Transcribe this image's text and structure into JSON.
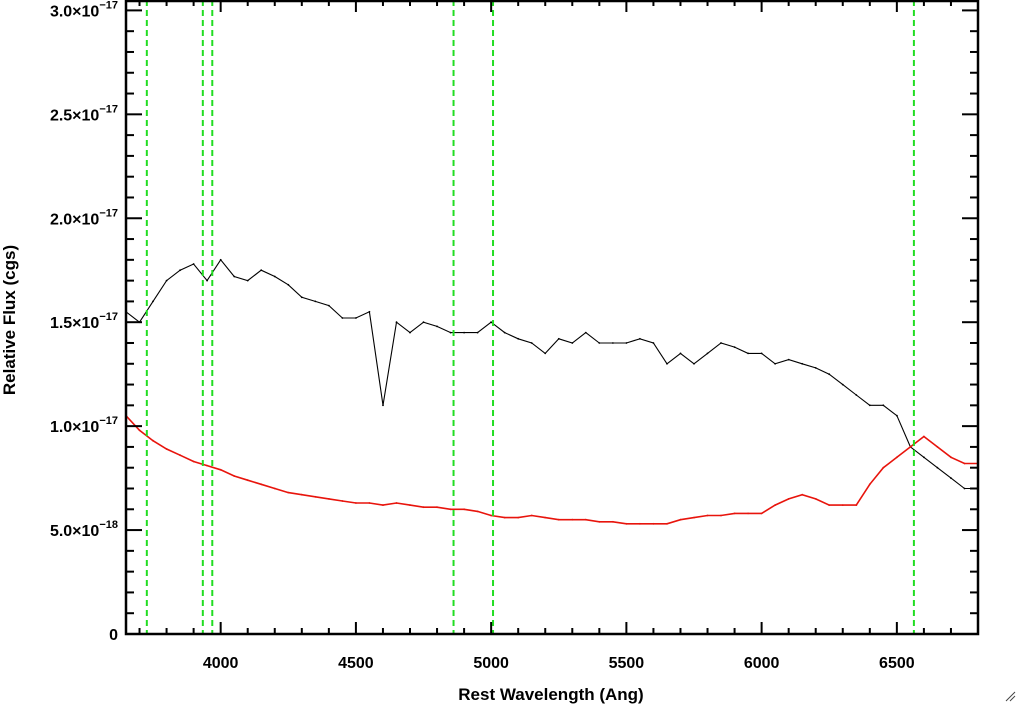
{
  "chart_data": {
    "type": "line",
    "xlabel": "Rest Wavelength (Ang)",
    "ylabel": "Relative Flux (cgs)",
    "xlim": [
      3650,
      6800
    ],
    "ylim": [
      0,
      3.05e-17
    ],
    "x_ticks": [
      {
        "value": 4000,
        "label": "4000"
      },
      {
        "value": 4500,
        "label": "4500"
      },
      {
        "value": 5000,
        "label": "5000"
      },
      {
        "value": 5500,
        "label": "5500"
      },
      {
        "value": 6000,
        "label": "6000"
      },
      {
        "value": 6500,
        "label": "6500"
      }
    ],
    "y_ticks": [
      {
        "value": 0,
        "mantissa": "0",
        "exponent": ""
      },
      {
        "value": 5e-18,
        "mantissa": "5.0×10",
        "exponent": "−18"
      },
      {
        "value": 1e-17,
        "mantissa": "1.0×10",
        "exponent": "−17"
      },
      {
        "value": 1.5e-17,
        "mantissa": "1.5×10",
        "exponent": "−17"
      },
      {
        "value": 2e-17,
        "mantissa": "2.0×10",
        "exponent": "−17"
      },
      {
        "value": 2.5e-17,
        "mantissa": "2.5×10",
        "exponent": "−17"
      },
      {
        "value": 3e-17,
        "mantissa": "3.0×10",
        "exponent": "−17"
      }
    ],
    "grid": false,
    "legend": "none",
    "colors": {
      "observed": "#000000",
      "error": "#e8140c",
      "lines": "#22dd22"
    },
    "series": [
      {
        "style": "black",
        "x": [
          3650,
          3700,
          3750,
          3800,
          3850,
          3900,
          3950,
          4000,
          4050,
          4100,
          4150,
          4200,
          4250,
          4300,
          4350,
          4400,
          4450,
          4500,
          4550,
          4600,
          4650,
          4700,
          4750,
          4800,
          4850,
          4900,
          4950,
          5000,
          5050,
          5100,
          5150,
          5200,
          5250,
          5300,
          5350,
          5400,
          5450,
          5500,
          5550,
          5600,
          5650,
          5700,
          5750,
          5800,
          5850,
          5900,
          5950,
          6000,
          6050,
          6100,
          6150,
          6200,
          6250,
          6300,
          6350,
          6400,
          6450,
          6500,
          6550,
          6600,
          6650,
          6700,
          6750,
          6800
        ],
        "y": [
          1.55e-17,
          1.5e-17,
          1.6e-17,
          1.7e-17,
          1.75e-17,
          1.78e-17,
          1.7e-17,
          1.8e-17,
          1.72e-17,
          1.7e-17,
          1.75e-17,
          1.72e-17,
          1.68e-17,
          1.62e-17,
          1.6e-17,
          1.58e-17,
          1.52e-17,
          1.52e-17,
          1.55e-17,
          1.1e-17,
          1.5e-17,
          1.45e-17,
          1.5e-17,
          1.48e-17,
          1.45e-17,
          1.45e-17,
          1.45e-17,
          1.5e-17,
          1.45e-17,
          1.42e-17,
          1.4e-17,
          1.35e-17,
          1.42e-17,
          1.4e-17,
          1.45e-17,
          1.4e-17,
          1.4e-17,
          1.4e-17,
          1.42e-17,
          1.4e-17,
          1.3e-17,
          1.35e-17,
          1.3e-17,
          1.35e-17,
          1.4e-17,
          1.38e-17,
          1.35e-17,
          1.35e-17,
          1.3e-17,
          1.32e-17,
          1.3e-17,
          1.28e-17,
          1.25e-17,
          1.2e-17,
          1.15e-17,
          1.1e-17,
          1.1e-17,
          1.05e-17,
          9e-18,
          8.5e-18,
          8e-18,
          7.5e-18,
          7e-18,
          7e-18
        ]
      },
      {
        "style": "red",
        "x": [
          3650,
          3700,
          3750,
          3800,
          3850,
          3900,
          3950,
          4000,
          4050,
          4100,
          4150,
          4200,
          4250,
          4300,
          4350,
          4400,
          4450,
          4500,
          4550,
          4600,
          4650,
          4700,
          4750,
          4800,
          4850,
          4900,
          4950,
          5000,
          5050,
          5100,
          5150,
          5200,
          5250,
          5300,
          5350,
          5400,
          5450,
          5500,
          5550,
          5600,
          5650,
          5700,
          5750,
          5800,
          5850,
          5900,
          5950,
          6000,
          6050,
          6100,
          6150,
          6200,
          6250,
          6300,
          6350,
          6400,
          6450,
          6500,
          6550,
          6600,
          6650,
          6700,
          6750,
          6800
        ],
        "y": [
          1.05e-17,
          9.8e-18,
          9.3e-18,
          8.9e-18,
          8.6e-18,
          8.3e-18,
          8.1e-18,
          7.9e-18,
          7.6e-18,
          7.4e-18,
          7.2e-18,
          7e-18,
          6.8e-18,
          6.7e-18,
          6.6e-18,
          6.5e-18,
          6.4e-18,
          6.3e-18,
          6.3e-18,
          6.2e-18,
          6.3e-18,
          6.2e-18,
          6.1e-18,
          6.1e-18,
          6e-18,
          6e-18,
          5.9e-18,
          5.7e-18,
          5.6e-18,
          5.6e-18,
          5.7e-18,
          5.6e-18,
          5.5e-18,
          5.5e-18,
          5.5e-18,
          5.4e-18,
          5.4e-18,
          5.3e-18,
          5.3e-18,
          5.3e-18,
          5.3e-18,
          5.5e-18,
          5.6e-18,
          5.7e-18,
          5.7e-18,
          5.8e-18,
          5.8e-18,
          5.8e-18,
          6.2e-18,
          6.5e-18,
          6.7e-18,
          6.5e-18,
          6.2e-18,
          6.2e-18,
          6.2e-18,
          7.2e-18,
          8e-18,
          8.5e-18,
          9e-18,
          9.5e-18,
          9e-18,
          8.5e-18,
          8.2e-18,
          8.2e-18
        ]
      }
    ],
    "vertical_lines": [
      3727,
      3934,
      3969,
      4861,
      5007,
      6563
    ]
  }
}
